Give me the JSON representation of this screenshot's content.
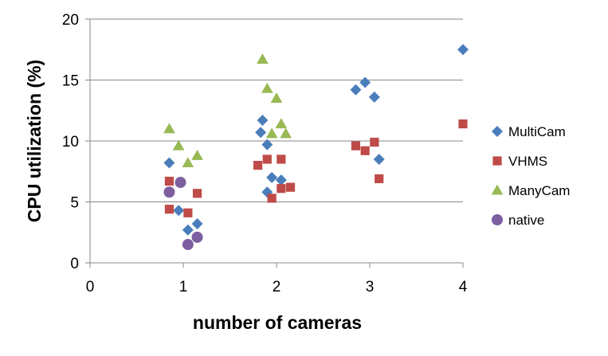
{
  "chart_data": {
    "type": "scatter",
    "title": "",
    "xlabel": "number of cameras",
    "ylabel": "CPU utilization (%)",
    "xlim": [
      0,
      4
    ],
    "ylim": [
      0,
      20
    ],
    "x_ticks": [
      "0",
      "1",
      "2",
      "3",
      "4"
    ],
    "y_ticks": [
      "0",
      "5",
      "10",
      "15",
      "20"
    ],
    "grid": "horizontal",
    "legend_position": "right",
    "series": [
      {
        "name": "MultiCam",
        "marker": "diamond",
        "color": "#4a7ebb",
        "points": [
          [
            0.85,
            8.2
          ],
          [
            0.95,
            4.3
          ],
          [
            1.05,
            2.7
          ],
          [
            1.15,
            3.2
          ],
          [
            1.83,
            10.7
          ],
          [
            1.85,
            11.7
          ],
          [
            1.9,
            9.7
          ],
          [
            1.9,
            5.8
          ],
          [
            1.95,
            7.0
          ],
          [
            2.05,
            6.8
          ],
          [
            2.85,
            14.2
          ],
          [
            2.95,
            14.8
          ],
          [
            3.05,
            13.6
          ],
          [
            3.1,
            8.5
          ],
          [
            4.0,
            17.5
          ]
        ]
      },
      {
        "name": "VHMS",
        "marker": "square",
        "color": "#be4b48",
        "points": [
          [
            0.85,
            6.7
          ],
          [
            0.85,
            4.4
          ],
          [
            1.05,
            4.1
          ],
          [
            1.15,
            5.7
          ],
          [
            1.8,
            8.0
          ],
          [
            1.9,
            8.5
          ],
          [
            1.95,
            5.3
          ],
          [
            2.05,
            8.5
          ],
          [
            2.05,
            6.1
          ],
          [
            2.15,
            6.2
          ],
          [
            2.85,
            9.6
          ],
          [
            2.95,
            9.2
          ],
          [
            3.05,
            9.9
          ],
          [
            3.1,
            6.9
          ],
          [
            4.0,
            11.4
          ]
        ]
      },
      {
        "name": "ManyCam",
        "marker": "triangle",
        "color": "#98b954",
        "points": [
          [
            0.85,
            11.0
          ],
          [
            0.95,
            9.6
          ],
          [
            1.05,
            8.2
          ],
          [
            1.15,
            8.8
          ],
          [
            1.85,
            16.7
          ],
          [
            1.9,
            14.3
          ],
          [
            1.95,
            10.6
          ],
          [
            2.0,
            13.5
          ],
          [
            2.05,
            11.4
          ],
          [
            2.1,
            10.6
          ]
        ]
      },
      {
        "name": "native",
        "marker": "circle",
        "color": "#7d5fa0",
        "points": [
          [
            0.85,
            5.8
          ],
          [
            0.97,
            6.6
          ],
          [
            1.05,
            1.5
          ],
          [
            1.15,
            2.1
          ]
        ]
      }
    ]
  }
}
